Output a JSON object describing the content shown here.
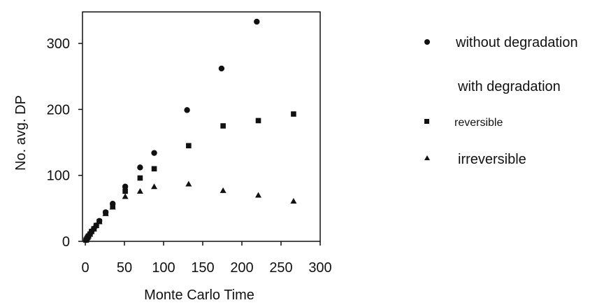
{
  "chart_data": {
    "type": "scatter",
    "xlabel": "Monte Carlo Time",
    "ylabel": "No. avg. DP",
    "xlim": [
      0,
      300
    ],
    "ylim": [
      0,
      350
    ],
    "xticks": [
      0,
      50,
      100,
      150,
      200,
      250,
      300
    ],
    "yticks": [
      0,
      100,
      200,
      300
    ],
    "grid": false,
    "legend_position": "right",
    "legend_heading": "with degradation",
    "series": [
      {
        "name": "without degradation",
        "marker": "circle",
        "color": "#111111",
        "points": [
          [
            1,
            2
          ],
          [
            2,
            4
          ],
          [
            3,
            6
          ],
          [
            4,
            8
          ],
          [
            6,
            11
          ],
          [
            8,
            15
          ],
          [
            11,
            19
          ],
          [
            14,
            24
          ],
          [
            18,
            31
          ],
          [
            26,
            44
          ],
          [
            35,
            57
          ],
          [
            51,
            83
          ],
          [
            70,
            112
          ],
          [
            88,
            134
          ],
          [
            130,
            199
          ],
          [
            174,
            262
          ],
          [
            219,
            333
          ]
        ]
      },
      {
        "name": "reversible",
        "marker": "square",
        "color": "#111111",
        "points": [
          [
            1,
            2
          ],
          [
            2,
            4
          ],
          [
            3,
            6
          ],
          [
            4,
            8
          ],
          [
            6,
            11
          ],
          [
            8,
            15
          ],
          [
            11,
            19
          ],
          [
            14,
            24
          ],
          [
            18,
            30
          ],
          [
            26,
            43
          ],
          [
            35,
            53
          ],
          [
            51,
            76
          ],
          [
            70,
            96
          ],
          [
            88,
            110
          ],
          [
            132,
            145
          ],
          [
            176,
            175
          ],
          [
            221,
            183
          ],
          [
            266,
            193
          ]
        ]
      },
      {
        "name": "irreversible",
        "marker": "triangle",
        "color": "#111111",
        "points": [
          [
            1,
            2
          ],
          [
            2,
            4
          ],
          [
            3,
            6
          ],
          [
            4,
            8
          ],
          [
            6,
            11
          ],
          [
            8,
            15
          ],
          [
            11,
            19
          ],
          [
            14,
            24
          ],
          [
            18,
            30
          ],
          [
            26,
            42
          ],
          [
            35,
            52
          ],
          [
            51,
            68
          ],
          [
            70,
            76
          ],
          [
            88,
            83
          ],
          [
            132,
            87
          ],
          [
            176,
            77
          ],
          [
            221,
            70
          ],
          [
            266,
            61
          ]
        ]
      }
    ]
  }
}
